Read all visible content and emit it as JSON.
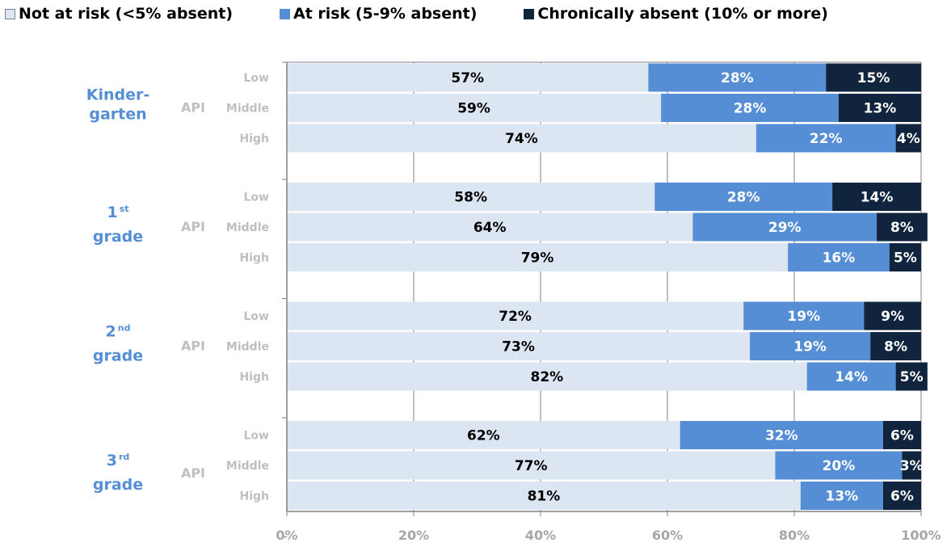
{
  "colors": {
    "not_at_risk": "#dce6f2",
    "at_risk": "#558ed5",
    "chronic": "#10243e",
    "grade_label": "#558ed5",
    "api_label": "#bfbfbf",
    "grid": "#808080"
  },
  "legend": [
    {
      "label": "Not at risk (<5% absent)",
      "color": "#dce6f2"
    },
    {
      "label": "At risk (5-9% absent)",
      "color": "#558ed5"
    },
    {
      "label": "Chronically absent (10% or more)",
      "color": "#10243e"
    }
  ],
  "chart_data": {
    "type": "bar",
    "orientation": "horizontal",
    "stacked": true,
    "xlim": [
      0,
      100
    ],
    "x_ticks": [
      "0%",
      "20%",
      "40%",
      "60%",
      "80%",
      "100%"
    ],
    "group_axis_label": "API",
    "series": [
      {
        "name": "Not at risk (<5% absent)"
      },
      {
        "name": "At risk (5-9% absent)"
      },
      {
        "name": "Chronically absent (10% or more)"
      }
    ],
    "groups": [
      {
        "label_lines": [
          "Kinder-",
          "garten"
        ],
        "rows": [
          {
            "category": "Low",
            "values": [
              57,
              28,
              15
            ]
          },
          {
            "category": "Middle",
            "values": [
              59,
              28,
              13
            ]
          },
          {
            "category": "High",
            "values": [
              74,
              22,
              4
            ]
          }
        ]
      },
      {
        "label_lines": [
          "1st",
          "grade"
        ],
        "label_main": "1",
        "label_sup": "st",
        "label_line2": "grade",
        "rows": [
          {
            "category": "Low",
            "values": [
              58,
              28,
              14
            ]
          },
          {
            "category": "Middle",
            "values": [
              64,
              29,
              8
            ]
          },
          {
            "category": "High",
            "values": [
              79,
              16,
              5
            ]
          }
        ]
      },
      {
        "label_lines": [
          "2nd",
          "grade"
        ],
        "label_main": "2",
        "label_sup": "nd",
        "label_line2": "grade",
        "rows": [
          {
            "category": "Low",
            "values": [
              72,
              19,
              9
            ]
          },
          {
            "category": "Middle",
            "values": [
              73,
              19,
              8
            ]
          },
          {
            "category": "High",
            "values": [
              82,
              14,
              5
            ]
          }
        ]
      },
      {
        "label_lines": [
          "3rd",
          "grade"
        ],
        "label_main": "3",
        "label_sup": "rd",
        "label_line2": "grade",
        "rows": [
          {
            "category": "Low",
            "values": [
              62,
              32,
              6
            ]
          },
          {
            "category": "Middle",
            "values": [
              77,
              20,
              3
            ]
          },
          {
            "category": "High",
            "values": [
              81,
              13,
              6
            ]
          }
        ]
      }
    ]
  }
}
